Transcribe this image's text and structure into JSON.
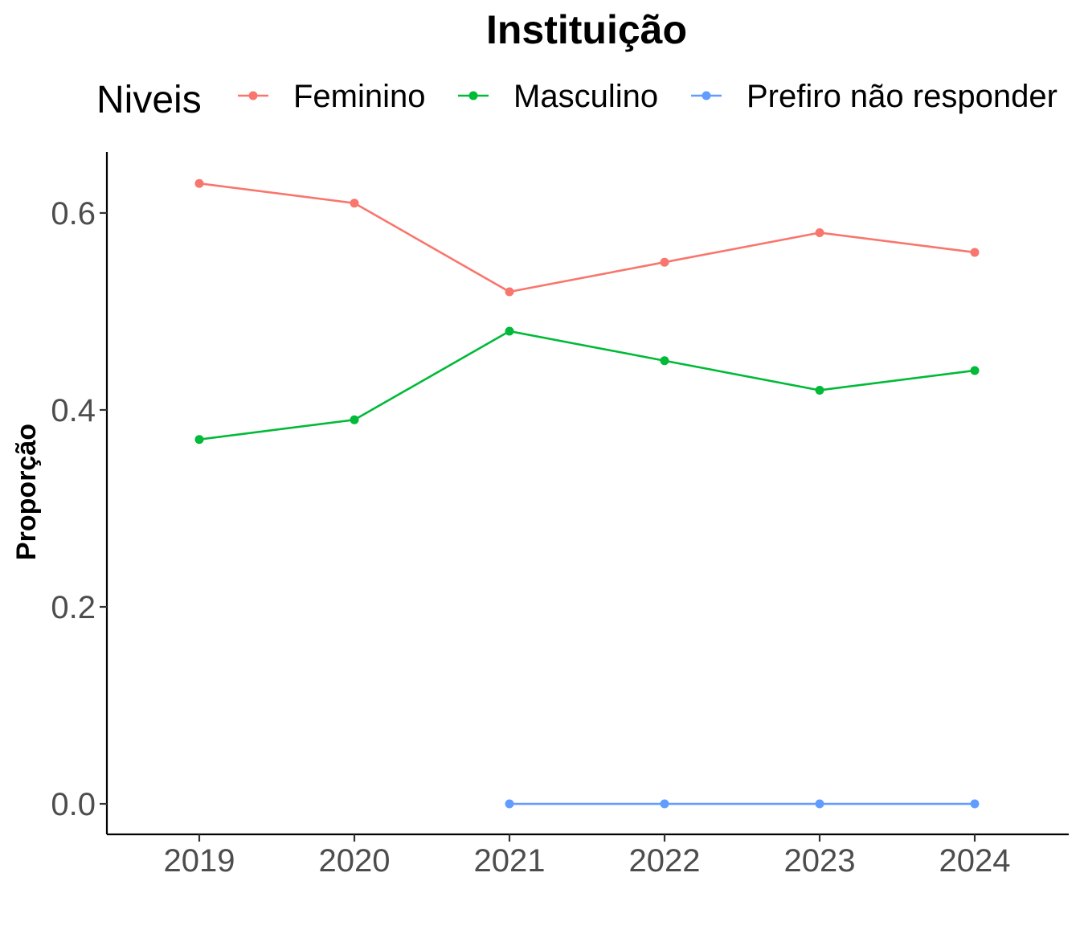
{
  "chart_data": {
    "type": "line",
    "title": "Instituição",
    "xlabel": "",
    "ylabel": "Proporção",
    "legend_title": "Niveis",
    "legend_position": "top",
    "grid": false,
    "categories": [
      "2019",
      "2020",
      "2021",
      "2022",
      "2023",
      "2024"
    ],
    "ylim": [
      -0.031,
      0.662
    ],
    "yticks": [
      "0.0",
      "0.2",
      "0.4",
      "0.6"
    ],
    "series": [
      {
        "name": "Feminino",
        "color": "#F8766D",
        "values": [
          0.63,
          0.61,
          0.52,
          0.55,
          0.58,
          0.56
        ]
      },
      {
        "name": "Masculino",
        "color": "#00BA38",
        "values": [
          0.37,
          0.39,
          0.48,
          0.45,
          0.42,
          0.44
        ]
      },
      {
        "name": "Prefiro não responder",
        "color": "#619CFF",
        "values": [
          null,
          null,
          0.0,
          0.0,
          0.0,
          0.0
        ]
      }
    ]
  }
}
